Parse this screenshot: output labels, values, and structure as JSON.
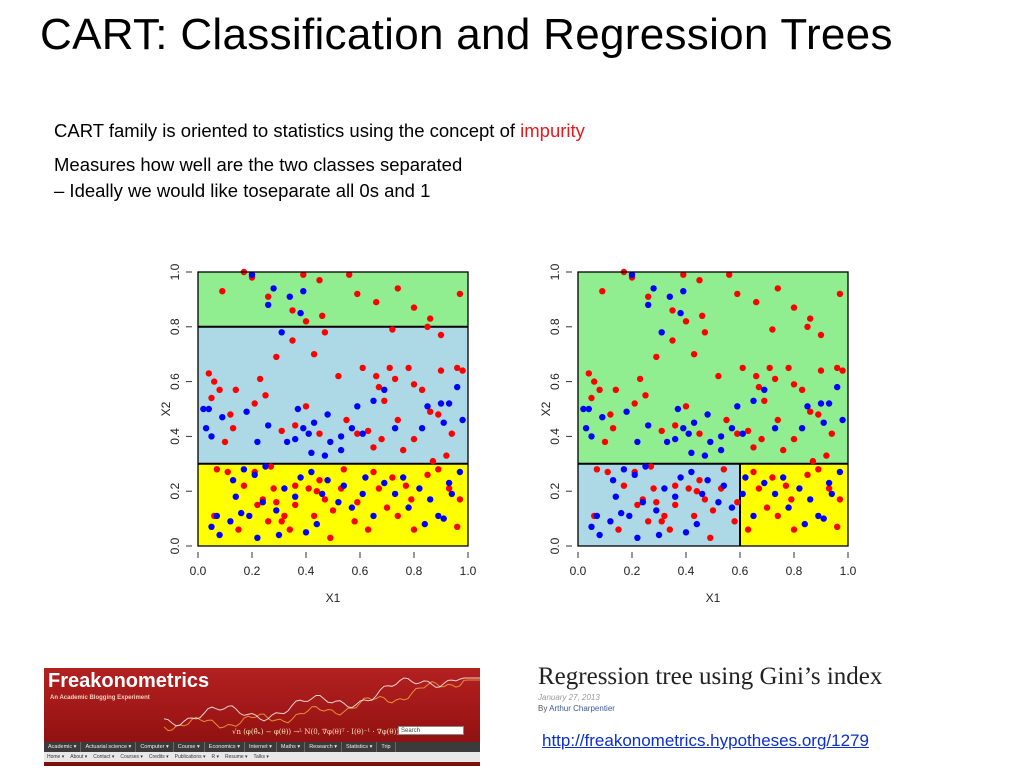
{
  "slide": {
    "title": "CART:  Classification and Regression Trees",
    "bullet1_main": "CART family is oriented to statistics using the concept of ",
    "bullet1_highlight": "impurity",
    "bullet2_line1": "Measures how well are the two classes separated",
    "bullet2_line2": "– Ideally we would like toseparate all 0s and 1"
  },
  "colors": {
    "highlight": "#e41a1c",
    "region_green": "#90ee90",
    "region_lightblue": "#add8e6",
    "region_yellow": "#ffff00",
    "point_red": "#ff0000",
    "point_blue": "#0000ff",
    "link": "#0b2fd0"
  },
  "chart_data": [
    {
      "type": "scatter",
      "xlabel": "X1",
      "ylabel": "X2",
      "xlim": [
        0,
        1
      ],
      "ylim": [
        0,
        1
      ],
      "xticks": [
        "0.0",
        "0.2",
        "0.4",
        "0.6",
        "0.8",
        "1.0"
      ],
      "yticks": [
        "0.0",
        "0.2",
        "0.4",
        "0.6",
        "0.8",
        "1.0"
      ],
      "regions": [
        {
          "x": [
            0,
            1
          ],
          "y": [
            0.8,
            1
          ],
          "color": "#90ee90"
        },
        {
          "x": [
            0,
            1
          ],
          "y": [
            0.3,
            0.8
          ],
          "color": "#add8e6"
        },
        {
          "x": [
            0,
            1
          ],
          "y": [
            0,
            0.3
          ],
          "color": "#ffff00"
        }
      ],
      "splits": [
        {
          "axis": "y",
          "value": 0.8,
          "from": 0,
          "to": 1
        },
        {
          "axis": "y",
          "value": 0.3,
          "from": 0,
          "to": 1
        }
      ],
      "series": [
        {
          "color": "#ff0000",
          "points": [
            [
              0.09,
              0.93
            ],
            [
              0.17,
              1.0
            ],
            [
              0.2,
              0.98
            ],
            [
              0.26,
              0.91
            ],
            [
              0.35,
              0.86
            ],
            [
              0.39,
              0.99
            ],
            [
              0.45,
              0.97
            ],
            [
              0.56,
              0.99
            ],
            [
              0.59,
              0.92
            ],
            [
              0.66,
              0.89
            ],
            [
              0.74,
              0.94
            ],
            [
              0.8,
              0.87
            ],
            [
              0.85,
              0.8
            ],
            [
              0.9,
              0.77
            ],
            [
              0.86,
              0.83
            ],
            [
              0.4,
              0.82
            ],
            [
              0.46,
              0.84
            ],
            [
              0.35,
              0.75
            ],
            [
              0.43,
              0.7
            ],
            [
              0.47,
              0.78
            ],
            [
              0.29,
              0.69
            ],
            [
              0.23,
              0.61
            ],
            [
              0.25,
              0.55
            ],
            [
              0.14,
              0.57
            ],
            [
              0.04,
              0.63
            ],
            [
              0.21,
              0.52
            ],
            [
              0.13,
              0.43
            ],
            [
              0.1,
              0.38
            ],
            [
              0.08,
              0.57
            ],
            [
              0.06,
              0.6
            ],
            [
              0.12,
              0.48
            ],
            [
              0.05,
              0.54
            ],
            [
              0.31,
              0.42
            ],
            [
              0.36,
              0.44
            ],
            [
              0.4,
              0.51
            ],
            [
              0.55,
              0.46
            ],
            [
              0.59,
              0.41
            ],
            [
              0.63,
              0.42
            ],
            [
              0.65,
              0.36
            ],
            [
              0.67,
              0.58
            ],
            [
              0.71,
              0.65
            ],
            [
              0.66,
              0.62
            ],
            [
              0.69,
              0.53
            ],
            [
              0.74,
              0.46
            ],
            [
              0.78,
              0.65
            ],
            [
              0.8,
              0.59
            ],
            [
              0.83,
              0.57
            ],
            [
              0.86,
              0.49
            ],
            [
              0.89,
              0.48
            ],
            [
              0.92,
              0.33
            ],
            [
              0.96,
              0.65
            ],
            [
              0.98,
              0.64
            ],
            [
              0.76,
              0.35
            ],
            [
              0.87,
              0.31
            ],
            [
              0.9,
              0.64
            ],
            [
              0.61,
              0.65
            ],
            [
              0.73,
              0.61
            ],
            [
              0.52,
              0.62
            ],
            [
              0.68,
              0.39
            ],
            [
              0.8,
              0.39
            ],
            [
              0.94,
              0.41
            ],
            [
              0.45,
              0.41
            ],
            [
              0.97,
              0.92
            ],
            [
              0.72,
              0.79
            ],
            [
              0.07,
              0.28
            ],
            [
              0.11,
              0.27
            ],
            [
              0.17,
              0.22
            ],
            [
              0.21,
              0.27
            ],
            [
              0.27,
              0.29
            ],
            [
              0.28,
              0.21
            ],
            [
              0.29,
              0.16
            ],
            [
              0.32,
              0.11
            ],
            [
              0.36,
              0.15
            ],
            [
              0.41,
              0.21
            ],
            [
              0.45,
              0.24
            ],
            [
              0.5,
              0.13
            ],
            [
              0.54,
              0.28
            ],
            [
              0.59,
              0.16
            ],
            [
              0.65,
              0.27
            ],
            [
              0.7,
              0.14
            ],
            [
              0.74,
              0.11
            ],
            [
              0.77,
              0.22
            ],
            [
              0.85,
              0.26
            ],
            [
              0.89,
              0.28
            ],
            [
              0.93,
              0.21
            ],
            [
              0.97,
              0.17
            ],
            [
              0.22,
              0.15
            ],
            [
              0.34,
              0.06
            ],
            [
              0.15,
              0.06
            ],
            [
              0.26,
              0.09
            ],
            [
              0.49,
              0.03
            ],
            [
              0.58,
              0.09
            ],
            [
              0.8,
              0.06
            ],
            [
              0.36,
              0.22
            ],
            [
              0.06,
              0.11
            ],
            [
              0.47,
              0.17
            ],
            [
              0.63,
              0.06
            ],
            [
              0.72,
              0.25
            ],
            [
              0.43,
              0.11
            ],
            [
              0.31,
              0.09
            ],
            [
              0.67,
              0.21
            ],
            [
              0.44,
              0.2
            ],
            [
              0.24,
              0.17
            ],
            [
              0.79,
              0.17
            ],
            [
              0.53,
              0.21
            ],
            [
              0.96,
              0.07
            ]
          ]
        },
        {
          "color": "#0000ff",
          "points": [
            [
              0.2,
              0.99
            ],
            [
              0.28,
              0.94
            ],
            [
              0.39,
              0.93
            ],
            [
              0.34,
              0.91
            ],
            [
              0.26,
              0.88
            ],
            [
              0.38,
              0.85
            ],
            [
              0.31,
              0.78
            ],
            [
              0.04,
              0.5
            ],
            [
              0.03,
              0.43
            ],
            [
              0.05,
              0.4
            ],
            [
              0.02,
              0.5
            ],
            [
              0.18,
              0.49
            ],
            [
              0.26,
              0.44
            ],
            [
              0.22,
              0.38
            ],
            [
              0.36,
              0.39
            ],
            [
              0.43,
              0.45
            ],
            [
              0.37,
              0.5
            ],
            [
              0.41,
              0.41
            ],
            [
              0.48,
              0.48
            ],
            [
              0.53,
              0.4
            ],
            [
              0.57,
              0.43
            ],
            [
              0.49,
              0.38
            ],
            [
              0.53,
              0.35
            ],
            [
              0.47,
              0.33
            ],
            [
              0.59,
              0.51
            ],
            [
              0.65,
              0.53
            ],
            [
              0.69,
              0.57
            ],
            [
              0.73,
              0.43
            ],
            [
              0.83,
              0.43
            ],
            [
              0.85,
              0.51
            ],
            [
              0.91,
              0.45
            ],
            [
              0.93,
              0.52
            ],
            [
              0.96,
              0.58
            ],
            [
              0.98,
              0.46
            ],
            [
              0.9,
              0.52
            ],
            [
              0.61,
              0.41
            ],
            [
              0.39,
              0.43
            ],
            [
              0.33,
              0.38
            ],
            [
              0.42,
              0.34
            ],
            [
              0.09,
              0.47
            ],
            [
              0.13,
              0.24
            ],
            [
              0.17,
              0.28
            ],
            [
              0.21,
              0.26
            ],
            [
              0.25,
              0.29
            ],
            [
              0.14,
              0.18
            ],
            [
              0.07,
              0.11
            ],
            [
              0.05,
              0.07
            ],
            [
              0.12,
              0.09
            ],
            [
              0.19,
              0.11
            ],
            [
              0.24,
              0.16
            ],
            [
              0.29,
              0.13
            ],
            [
              0.32,
              0.21
            ],
            [
              0.36,
              0.18
            ],
            [
              0.38,
              0.25
            ],
            [
              0.42,
              0.27
            ],
            [
              0.46,
              0.19
            ],
            [
              0.48,
              0.24
            ],
            [
              0.52,
              0.16
            ],
            [
              0.57,
              0.14
            ],
            [
              0.61,
              0.19
            ],
            [
              0.65,
              0.11
            ],
            [
              0.69,
              0.23
            ],
            [
              0.73,
              0.19
            ],
            [
              0.78,
              0.14
            ],
            [
              0.82,
              0.21
            ],
            [
              0.86,
              0.17
            ],
            [
              0.89,
              0.11
            ],
            [
              0.94,
              0.19
            ],
            [
              0.97,
              0.27
            ],
            [
              0.91,
              0.1
            ],
            [
              0.84,
              0.08
            ],
            [
              0.76,
              0.25
            ],
            [
              0.62,
              0.25
            ],
            [
              0.54,
              0.22
            ],
            [
              0.44,
              0.08
            ],
            [
              0.4,
              0.05
            ],
            [
              0.3,
              0.04
            ],
            [
              0.22,
              0.03
            ],
            [
              0.16,
              0.12
            ],
            [
              0.08,
              0.04
            ],
            [
              0.93,
              0.23
            ]
          ]
        }
      ]
    },
    {
      "type": "scatter",
      "xlabel": "X1",
      "ylabel": "X2",
      "xlim": [
        0,
        1
      ],
      "ylim": [
        0,
        1
      ],
      "xticks": [
        "0.0",
        "0.2",
        "0.4",
        "0.6",
        "0.8",
        "1.0"
      ],
      "yticks": [
        "0.0",
        "0.2",
        "0.4",
        "0.6",
        "0.8",
        "1.0"
      ],
      "regions": [
        {
          "x": [
            0,
            1
          ],
          "y": [
            0.3,
            1
          ],
          "color": "#90ee90"
        },
        {
          "x": [
            0,
            0.6
          ],
          "y": [
            0,
            0.3
          ],
          "color": "#add8e6"
        },
        {
          "x": [
            0.6,
            1
          ],
          "y": [
            0,
            0.3
          ],
          "color": "#ffff00"
        }
      ],
      "splits": [
        {
          "axis": "y",
          "value": 0.3,
          "from": 0,
          "to": 1
        },
        {
          "axis": "x",
          "value": 0.6,
          "from": 0,
          "to": 0.3
        }
      ],
      "series": "same points as left plot"
    }
  ],
  "citation": {
    "banner": {
      "name": "Freakonometrics",
      "tagline": "An Academic Blogging Experiment",
      "search_placeholder": "Search",
      "formula": "√n (φ(θ̂ₙ) − φ(θ)) →ᴸ N(0, ∇φ(θ)ᵀ · I(θ)⁻¹ · ∇φ(θ))",
      "nav_items": [
        "Academic ▾",
        "Actuarial science ▾",
        "Computer ▾",
        "Course ▾",
        "Economics ▾",
        "Internet ▾",
        "Maths ▾",
        "Research ▾",
        "Statistics ▾",
        "Trip"
      ],
      "subnav_items": [
        "Home ▾",
        "About ▾",
        "Contact ▾",
        "Courses ▾",
        "Credits ▾",
        "Publications ▾",
        "R ▾",
        "Resume ▾",
        "Talks ▾"
      ]
    },
    "post_title": "Regression tree using Gini’s index",
    "post_date": "January 27, 2013",
    "post_author_prefix": "By ",
    "post_author": "Arthur Charpentier",
    "url": "http://freakonometrics.hypotheses.org/1279"
  }
}
